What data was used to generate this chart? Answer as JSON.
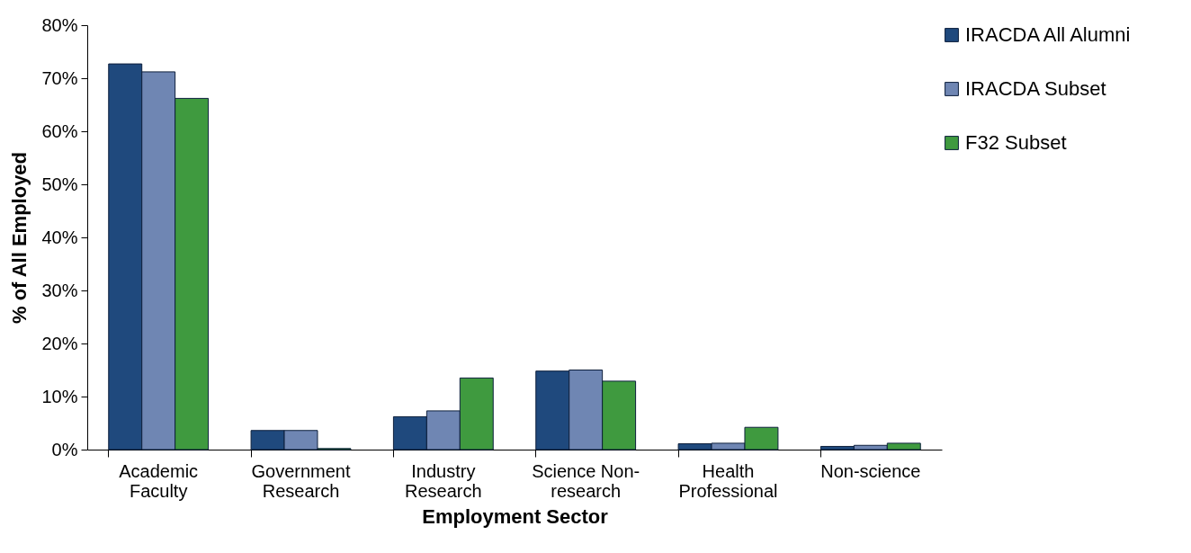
{
  "chart_data": {
    "type": "bar",
    "xlabel": "Employment Sector",
    "ylabel": "% of All Employed",
    "categories": [
      "Academic Faculty",
      "Government Research",
      "Industry Research",
      "Science Non-research",
      "Health Professional",
      "Non-science"
    ],
    "series": [
      {
        "name": "IRACDA All Alumni",
        "color": "#1f497d",
        "values": [
          72.7,
          3.6,
          6.2,
          14.8,
          1.1,
          0.6
        ]
      },
      {
        "name": "IRACDA Subset",
        "color": "#6f86b3",
        "values": [
          71.2,
          3.6,
          7.3,
          15.0,
          1.2,
          0.8
        ]
      },
      {
        "name": "F32 Subset",
        "color": "#3f9a3f",
        "values": [
          66.2,
          0.2,
          13.5,
          12.9,
          4.2,
          1.2
        ]
      }
    ],
    "ylim": [
      0,
      80
    ],
    "yticks": [
      {
        "value": 0,
        "label": "0%"
      },
      {
        "value": 10,
        "label": "10%"
      },
      {
        "value": 20,
        "label": "20%"
      },
      {
        "value": 30,
        "label": "30%"
      },
      {
        "value": 40,
        "label": "40%"
      },
      {
        "value": 50,
        "label": "50%"
      },
      {
        "value": 60,
        "label": "60%"
      },
      {
        "value": 70,
        "label": "70%"
      },
      {
        "value": 80,
        "label": "80%"
      }
    ],
    "grid": false,
    "legend": "right"
  }
}
